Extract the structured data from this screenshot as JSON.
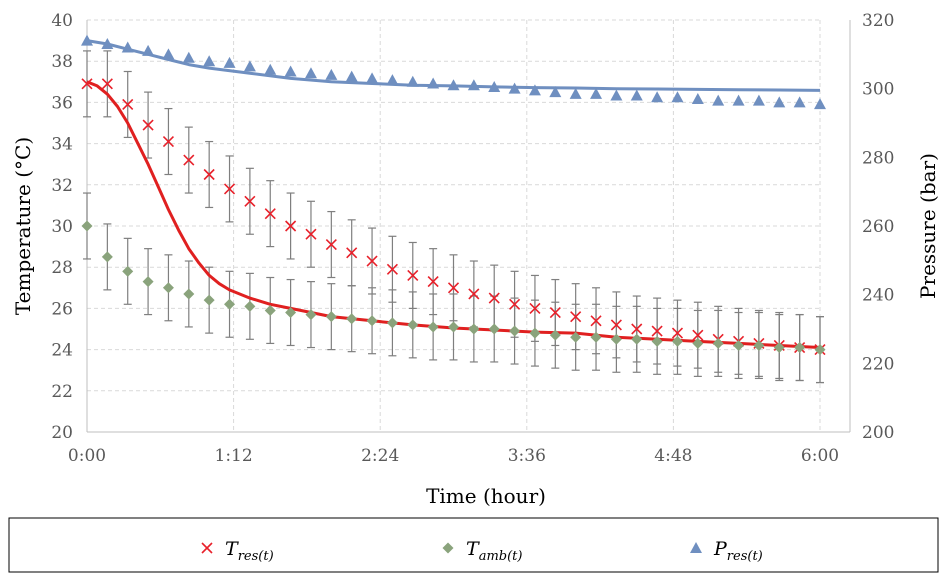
{
  "chart_data": {
    "type": "line",
    "xlabel": "Time (hour)",
    "ylabel": "Temperature (°C)",
    "y2label": "Pressure (bar)",
    "xlim": [
      0,
      360
    ],
    "ylim": [
      20,
      40
    ],
    "y2lim": [
      200,
      320
    ],
    "x_ticks": [
      0,
      72,
      144,
      216,
      288,
      360
    ],
    "x_tick_labels": [
      "0:00",
      "1:12",
      "2:24",
      "3:36",
      "4:48",
      "6:00"
    ],
    "y_ticks": [
      20,
      22,
      24,
      26,
      28,
      30,
      32,
      34,
      36,
      38,
      40
    ],
    "y_tick_labels": [
      "20",
      "22",
      "24",
      "26",
      "28",
      "30",
      "32",
      "34",
      "36",
      "38",
      "40"
    ],
    "y2_ticks": [
      200,
      220,
      240,
      260,
      280,
      300,
      320
    ],
    "y2_tick_labels": [
      "200",
      "220",
      "240",
      "260",
      "280",
      "300",
      "320"
    ],
    "grid": true,
    "legend_position": "bottom",
    "x": [
      0,
      10,
      20,
      30,
      40,
      50,
      60,
      70,
      80,
      90,
      100,
      110,
      120,
      130,
      140,
      150,
      160,
      170,
      180,
      190,
      200,
      210,
      220,
      230,
      240,
      250,
      260,
      270,
      280,
      290,
      300,
      310,
      320,
      330,
      340,
      350,
      360
    ],
    "series": [
      {
        "name": "T",
        "subscript": "res(t)",
        "axis": "left",
        "marker": "x",
        "color": "#e8202a",
        "values": [
          36.9,
          36.9,
          35.9,
          34.9,
          34.1,
          33.2,
          32.5,
          31.8,
          31.2,
          30.6,
          30.0,
          29.6,
          29.1,
          28.7,
          28.3,
          27.9,
          27.6,
          27.3,
          27.0,
          26.7,
          26.5,
          26.2,
          26.0,
          25.8,
          25.6,
          25.4,
          25.2,
          25.0,
          24.9,
          24.8,
          24.7,
          24.5,
          24.4,
          24.3,
          24.2,
          24.1,
          24.0
        ],
        "errors": [
          1.6,
          1.6,
          1.6,
          1.6,
          1.6,
          1.6,
          1.6,
          1.6,
          1.6,
          1.6,
          1.6,
          1.6,
          1.6,
          1.6,
          1.6,
          1.6,
          1.6,
          1.6,
          1.6,
          1.6,
          1.6,
          1.6,
          1.6,
          1.6,
          1.6,
          1.6,
          1.6,
          1.6,
          1.6,
          1.6,
          1.6,
          1.6,
          1.6,
          1.6,
          1.6,
          1.6,
          1.6
        ]
      },
      {
        "name": "T",
        "subscript": "amb(t)",
        "axis": "left",
        "marker": "diamond",
        "color": "#8aa37c",
        "values": [
          30.0,
          28.5,
          27.8,
          27.3,
          27.0,
          26.7,
          26.4,
          26.2,
          26.1,
          25.9,
          25.8,
          25.7,
          25.6,
          25.5,
          25.4,
          25.3,
          25.2,
          25.1,
          25.1,
          25.0,
          25.0,
          24.9,
          24.8,
          24.7,
          24.6,
          24.6,
          24.5,
          24.5,
          24.4,
          24.4,
          24.3,
          24.3,
          24.2,
          24.2,
          24.1,
          24.1,
          24.0
        ],
        "errors": [
          1.6,
          1.6,
          1.6,
          1.6,
          1.6,
          1.6,
          1.6,
          1.6,
          1.6,
          1.6,
          1.6,
          1.6,
          1.6,
          1.6,
          1.6,
          1.6,
          1.6,
          1.6,
          1.6,
          1.6,
          1.6,
          1.6,
          1.6,
          1.6,
          1.6,
          1.6,
          1.6,
          1.6,
          1.6,
          1.6,
          1.6,
          1.6,
          1.6,
          1.6,
          1.6,
          1.6,
          1.6
        ]
      },
      {
        "name": "P",
        "subscript": "res(t)",
        "axis": "right",
        "marker": "triangle",
        "color": "#6f8fc0",
        "values": [
          314,
          313,
          312,
          311,
          310,
          309,
          308,
          307.5,
          306.5,
          305.5,
          305,
          304.5,
          304,
          303.5,
          303,
          302.5,
          302,
          301.5,
          301,
          301,
          300.5,
          300,
          299.5,
          299,
          298.5,
          298.5,
          298,
          298,
          297.5,
          297.5,
          297,
          296.5,
          296.5,
          296.5,
          296,
          296,
          295.5
        ]
      }
    ],
    "model_curves": [
      {
        "axis": "left",
        "color": "#e02020",
        "x": [
          0,
          5,
          10,
          15,
          20,
          25,
          30,
          35,
          40,
          45,
          50,
          55,
          60,
          65,
          70,
          80,
          90,
          100,
          110,
          120,
          140,
          160,
          180,
          200,
          220,
          240,
          260,
          280,
          300,
          320,
          340,
          360
        ],
        "values": [
          37.0,
          36.8,
          36.4,
          35.8,
          35.0,
          34.0,
          33.0,
          31.9,
          30.8,
          29.8,
          28.9,
          28.2,
          27.6,
          27.2,
          26.9,
          26.5,
          26.2,
          26.0,
          25.8,
          25.6,
          25.4,
          25.2,
          25.05,
          24.95,
          24.85,
          24.8,
          24.6,
          24.5,
          24.4,
          24.3,
          24.2,
          24.1
        ]
      },
      {
        "axis": "right",
        "color": "#6f8fc0",
        "x": [
          0,
          10,
          20,
          30,
          40,
          50,
          60,
          80,
          100,
          120,
          140,
          160,
          180,
          200,
          220,
          240,
          260,
          280,
          300,
          320,
          340,
          360
        ],
        "values": [
          314,
          313,
          311.5,
          310,
          308.5,
          307,
          306,
          304.5,
          303,
          302,
          301.5,
          301,
          300.8,
          300.5,
          300.3,
          300.2,
          300,
          299.9,
          299.8,
          299.7,
          299.6,
          299.5
        ]
      }
    ]
  }
}
